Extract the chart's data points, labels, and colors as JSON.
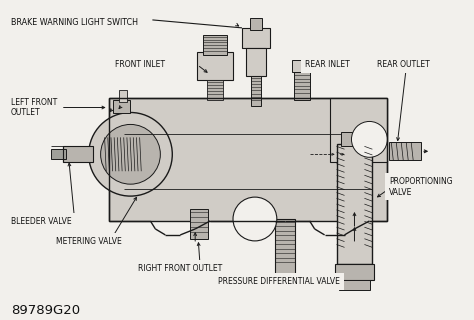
{
  "bg_color": "#f2f0ec",
  "line_color": "#1a1a1a",
  "text_color": "#111111",
  "part_id": "89789G20",
  "labels": {
    "brake_warning": "BRAKE WARNING LIGHT SWITCH",
    "front_inlet": "FRONT INLET",
    "rear_inlet": "REAR INLET",
    "rear_outlet": "REAR OUTLET",
    "left_front_outlet": "LEFT FRONT\nOUTLET",
    "bleeder_valve": "BLEEDER VALVE",
    "metering_valve": "METERING VALVE",
    "right_front_outlet": "RIGHT FRONT OUTLET",
    "pressure_diff": "PRESSURE DIFFERENTIAL VALVE",
    "proportioning": "PROPORTIONING\nVALVE"
  },
  "figsize": [
    4.74,
    3.2
  ],
  "dpi": 100
}
